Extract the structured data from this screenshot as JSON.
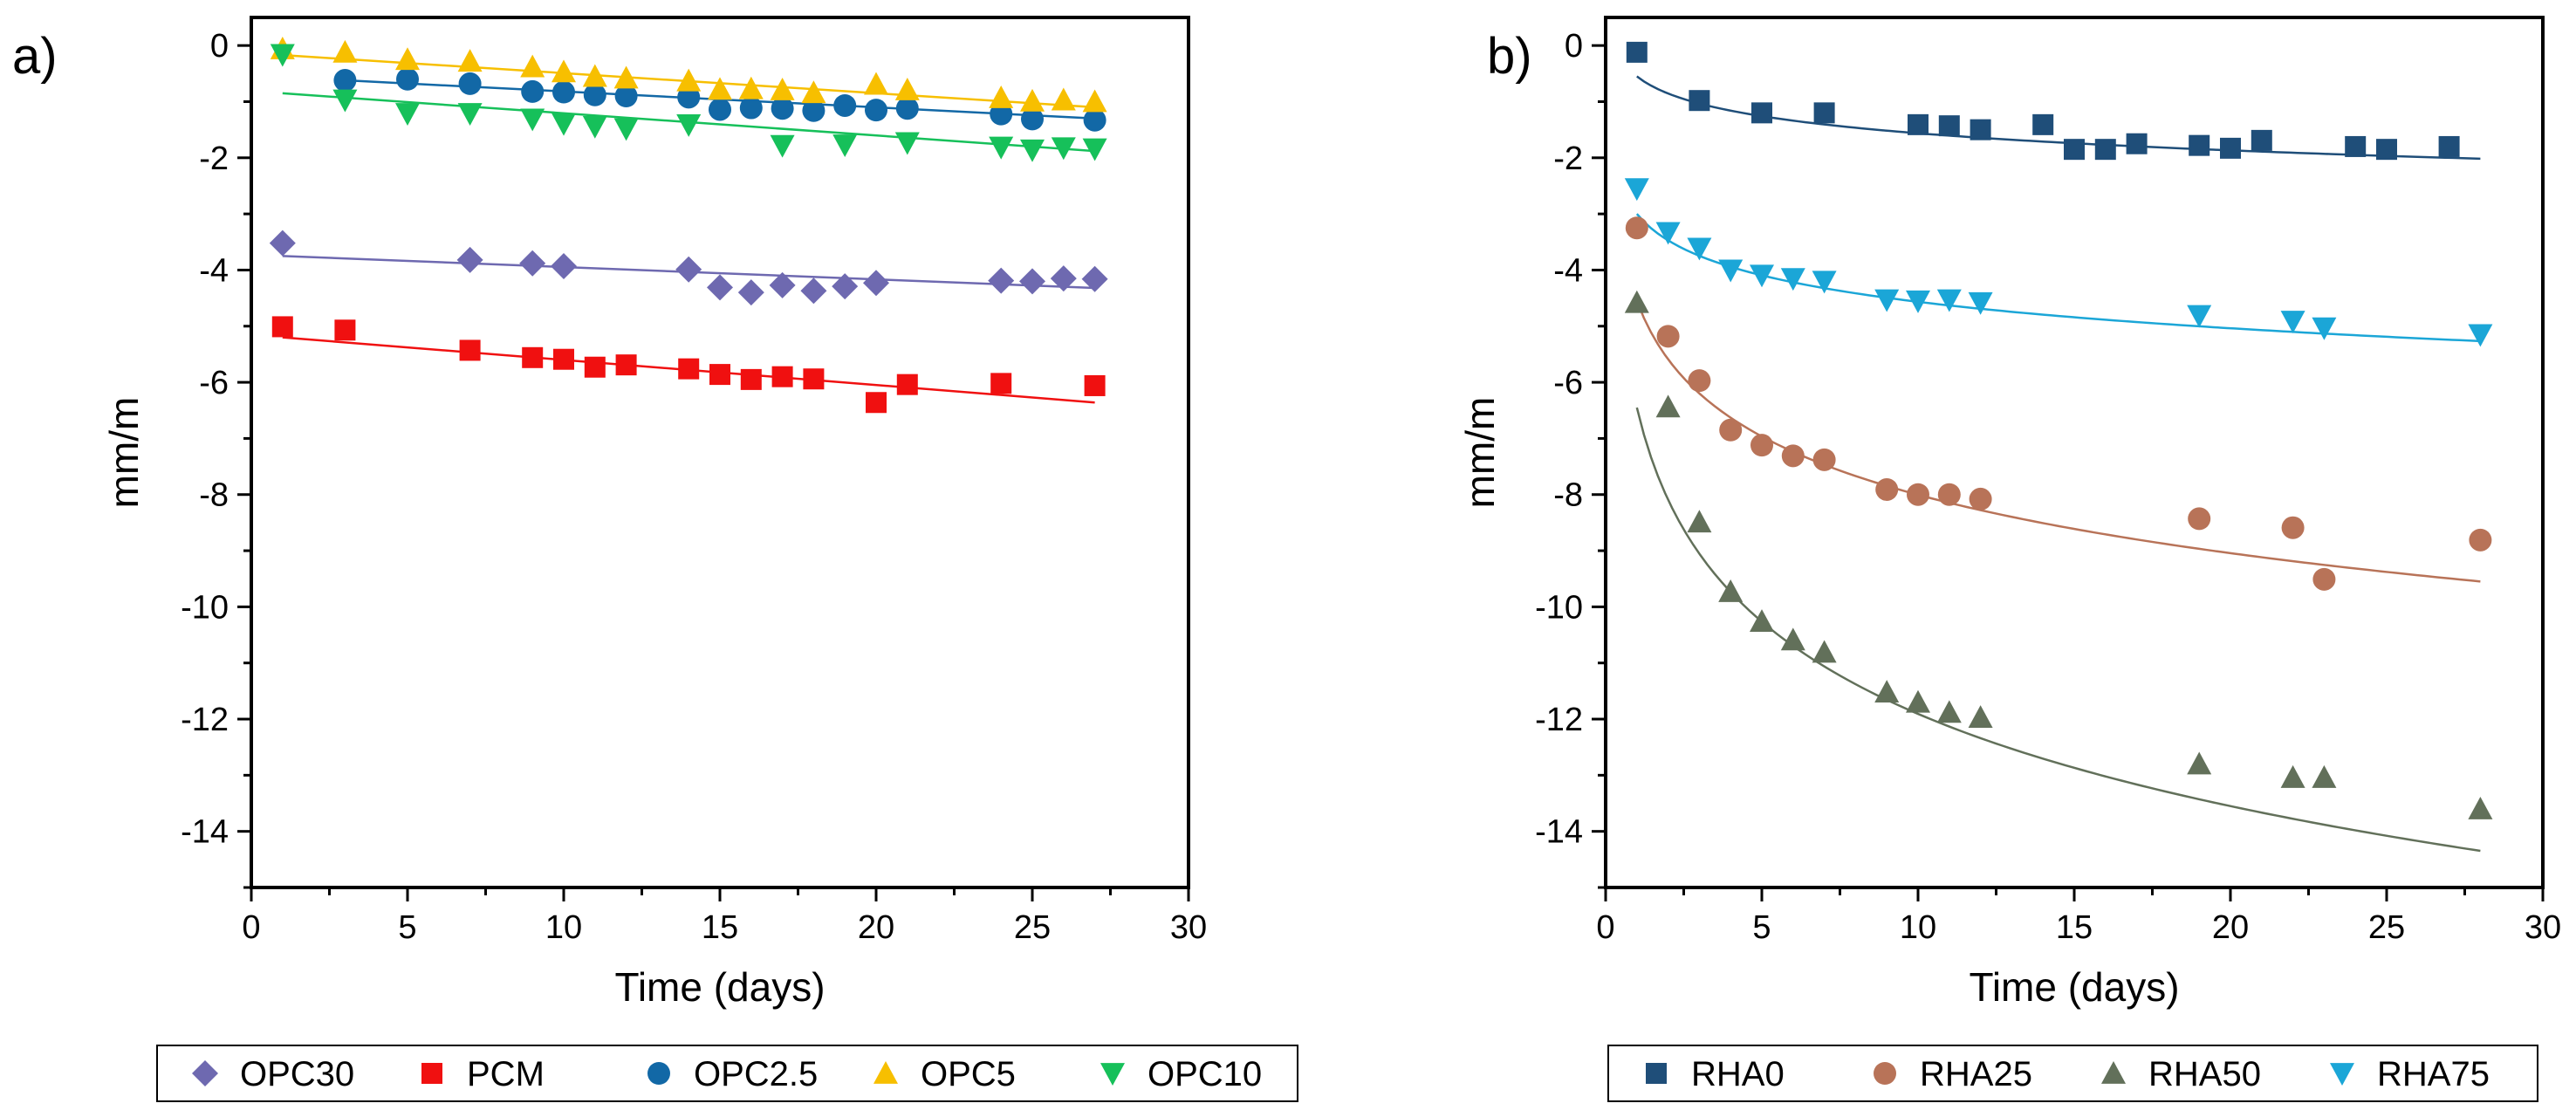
{
  "chart_data": [
    {
      "panel_label": "a)",
      "type": "scatter",
      "xlabel": "Time (days)",
      "ylabel": "mm/m",
      "xlim": [
        0,
        30
      ],
      "ylim": [
        -15,
        0.5
      ],
      "x_ticks": [
        0,
        5,
        10,
        15,
        20,
        25,
        30
      ],
      "y_ticks": [
        0,
        -2,
        -4,
        -6,
        -8,
        -10,
        -12,
        -14
      ],
      "legend_position": "bottom",
      "series": [
        {
          "name": "OPC30",
          "marker": "diamond",
          "color": "#6e69b0",
          "x": [
            1,
            7,
            9,
            10,
            14,
            15,
            16,
            17,
            18,
            19,
            20,
            24,
            25,
            26,
            27
          ],
          "y": [
            -3.52,
            -3.82,
            -3.88,
            -3.93,
            -3.99,
            -4.31,
            -4.4,
            -4.27,
            -4.37,
            -4.29,
            -4.23,
            -4.19,
            -4.2,
            -4.15,
            -4.16
          ],
          "fit": {
            "kind": "linear",
            "x0": 1,
            "x1": 27,
            "y0": -3.75,
            "y1": -4.32
          }
        },
        {
          "name": "PCM",
          "marker": "square",
          "color": "#f01010",
          "x": [
            1,
            3,
            7,
            9,
            10,
            11,
            12,
            14,
            15,
            16,
            17,
            18,
            20,
            21,
            24,
            27
          ],
          "y": [
            -5.01,
            -5.07,
            -5.43,
            -5.56,
            -5.59,
            -5.73,
            -5.69,
            -5.76,
            -5.86,
            -5.95,
            -5.9,
            -5.94,
            -6.36,
            -6.04,
            -6.02,
            -6.06
          ],
          "fit": {
            "kind": "linear",
            "x0": 1,
            "x1": 27,
            "y0": -5.2,
            "y1": -6.36
          }
        },
        {
          "name": "OPC2.5",
          "marker": "circle",
          "color": "#1268a6",
          "x": [
            3,
            5,
            7,
            9,
            10,
            11,
            12,
            14,
            15,
            16,
            17,
            18,
            19,
            20,
            21,
            24,
            25,
            27
          ],
          "y": [
            -0.62,
            -0.6,
            -0.68,
            -0.82,
            -0.83,
            -0.88,
            -0.9,
            -0.92,
            -1.14,
            -1.11,
            -1.12,
            -1.16,
            -1.07,
            -1.15,
            -1.12,
            -1.22,
            -1.31,
            -1.33
          ],
          "fit": {
            "kind": "linear",
            "x0": 3,
            "x1": 27,
            "y0": -0.62,
            "y1": -1.3
          }
        },
        {
          "name": "OPC5",
          "marker": "triangle-up",
          "color": "#f7bf00",
          "x": [
            1,
            3,
            5,
            7,
            9,
            10,
            11,
            12,
            14,
            15,
            16,
            17,
            18,
            20,
            21,
            24,
            25,
            26,
            27
          ],
          "y": [
            -0.06,
            -0.12,
            -0.25,
            -0.28,
            -0.38,
            -0.47,
            -0.55,
            -0.58,
            -0.63,
            -0.78,
            -0.77,
            -0.79,
            -0.84,
            -0.69,
            -0.79,
            -0.93,
            -0.99,
            -0.97,
            -1.0
          ],
          "fit": {
            "kind": "linear",
            "x0": 1,
            "x1": 27,
            "y0": -0.17,
            "y1": -1.1
          }
        },
        {
          "name": "OPC10",
          "marker": "triangle-down",
          "color": "#16c05a",
          "x": [
            1,
            3,
            5,
            7,
            9,
            10,
            11,
            12,
            14,
            17,
            19,
            21,
            24,
            25,
            26,
            27
          ],
          "y": [
            -0.16,
            -0.97,
            -1.21,
            -1.21,
            -1.31,
            -1.39,
            -1.44,
            -1.48,
            -1.41,
            -1.78,
            -1.77,
            -1.73,
            -1.81,
            -1.86,
            -1.82,
            -1.84
          ],
          "fit": {
            "kind": "linear",
            "x0": 1,
            "x1": 27,
            "y0": -0.85,
            "y1": -1.88
          }
        }
      ]
    },
    {
      "panel_label": "b)",
      "type": "scatter",
      "xlabel": "Time (days)",
      "ylabel": "mm/m",
      "xlim": [
        0,
        30
      ],
      "ylim": [
        -15,
        0.5
      ],
      "x_ticks": [
        0,
        5,
        10,
        15,
        20,
        25,
        30
      ],
      "y_ticks": [
        0,
        -2,
        -4,
        -6,
        -8,
        -10,
        -12,
        -14
      ],
      "legend_position": "bottom",
      "series": [
        {
          "name": "RHA0",
          "marker": "square",
          "color": "#1f4e79",
          "x": [
            1,
            3,
            5,
            7,
            10,
            11,
            12,
            14,
            15,
            16,
            17,
            19,
            20,
            21,
            24,
            25,
            27
          ],
          "y": [
            -0.12,
            -0.98,
            -1.2,
            -1.2,
            -1.41,
            -1.43,
            -1.5,
            -1.41,
            -1.85,
            -1.85,
            -1.75,
            -1.78,
            -1.83,
            -1.69,
            -1.8,
            -1.85,
            -1.8
          ],
          "fit": {
            "kind": "log",
            "a": -0.55,
            "b": -0.44,
            "x0": 1,
            "x1": 28
          }
        },
        {
          "name": "RHA25",
          "marker": "circle",
          "color": "#b87358",
          "x": [
            1,
            2,
            3,
            4,
            5,
            6,
            7,
            9,
            10,
            11,
            12,
            19,
            22,
            23,
            28
          ],
          "y": [
            -3.25,
            -5.18,
            -5.97,
            -6.85,
            -7.12,
            -7.31,
            -7.38,
            -7.91,
            -8.0,
            -8.0,
            -8.08,
            -8.43,
            -8.59,
            -9.51,
            -8.81
          ],
          "fit": {
            "kind": "log",
            "a": -4.55,
            "b": -1.5,
            "x0": 1,
            "x1": 28
          }
        },
        {
          "name": "RHA50",
          "marker": "triangle-up",
          "color": "#62705a",
          "x": [
            1,
            2,
            3,
            4,
            5,
            6,
            7,
            9,
            10,
            11,
            12,
            19,
            22,
            23,
            28
          ],
          "y": [
            -4.58,
            -6.44,
            -8.49,
            -9.73,
            -10.26,
            -10.59,
            -10.81,
            -11.52,
            -11.7,
            -11.88,
            -11.97,
            -12.8,
            -13.04,
            -13.04,
            -13.6
          ],
          "fit": {
            "kind": "log",
            "a": -6.45,
            "b": -2.37,
            "x0": 1,
            "x1": 28
          }
        },
        {
          "name": "RHA75",
          "marker": "triangle-down",
          "color": "#1ba6d7",
          "x": [
            1,
            2,
            3,
            4,
            5,
            6,
            7,
            9,
            10,
            11,
            12,
            19,
            22,
            23,
            28
          ],
          "y": [
            -2.55,
            -3.33,
            -3.61,
            -4.0,
            -4.09,
            -4.15,
            -4.2,
            -4.53,
            -4.55,
            -4.53,
            -4.58,
            -4.81,
            -4.91,
            -5.03,
            -5.15
          ],
          "fit": {
            "kind": "log",
            "a": -3.0,
            "b": -0.68,
            "x0": 1,
            "x1": 28
          }
        }
      ]
    }
  ]
}
